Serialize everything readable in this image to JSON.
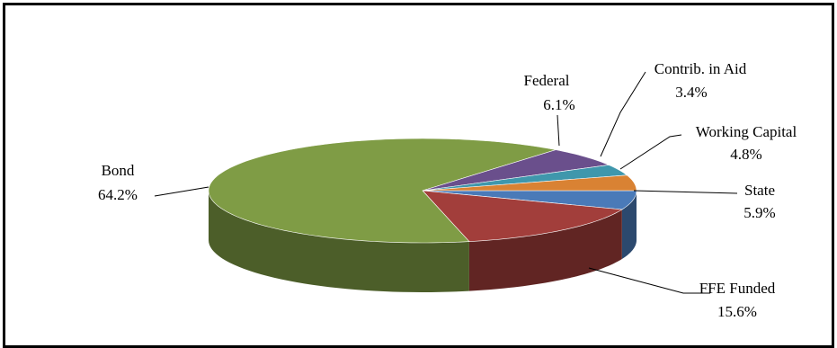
{
  "chart_data": {
    "type": "pie",
    "title": "",
    "style": "3d-exploded-tilt",
    "legend": "none",
    "slices": [
      {
        "label": "State",
        "value": 5.9,
        "value_label": "5.9%",
        "color": "#4a7ab8"
      },
      {
        "label": "FFE Funded",
        "value": 15.6,
        "value_label": "15.6%",
        "color": "#a23e3b"
      },
      {
        "label": "Bond",
        "value": 64.2,
        "value_label": "64.2%",
        "color": "#7f9c45"
      },
      {
        "label": "Federal",
        "value": 6.1,
        "value_label": "6.1%",
        "color": "#6a4f8c"
      },
      {
        "label": "Contrib. in Aid",
        "value": 3.4,
        "value_label": "3.4%",
        "color": "#3f97ac"
      },
      {
        "label": "Working Capital",
        "value": 4.8,
        "value_label": "4.8%",
        "color": "#d98233"
      }
    ]
  }
}
